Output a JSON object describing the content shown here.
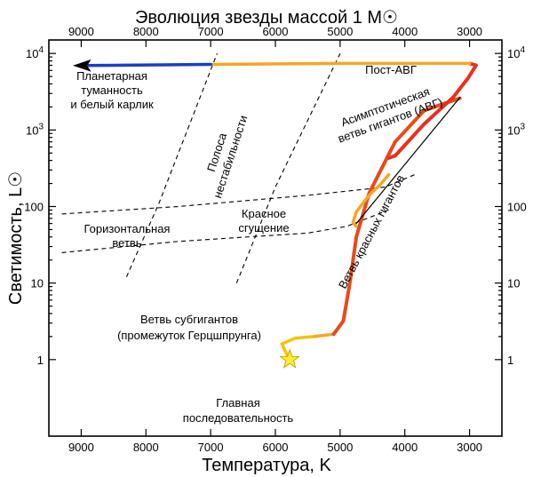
{
  "chart_data": {
    "type": "line",
    "title": "Эволюция звезды массой 1 M☉",
    "xlabel": "Температура, K",
    "ylabel": "Светимость, L☉",
    "x_axis": {
      "scale": "linear",
      "reversed": true,
      "range": [
        9500,
        2500
      ],
      "ticks": [
        9000,
        8000,
        7000,
        6000,
        5000,
        4000,
        3000
      ]
    },
    "y_axis": {
      "scale": "log",
      "range": [
        0.1,
        15000
      ],
      "ticks": [
        1,
        10,
        100,
        1000,
        10000
      ]
    },
    "series": [
      {
        "name": "Главная последовательность",
        "color": "#f4c20d",
        "points": [
          [
            5778,
            1.0
          ],
          [
            5850,
            1.3
          ],
          [
            5900,
            1.6
          ],
          [
            5700,
            1.9
          ],
          [
            5400,
            2.0
          ]
        ]
      },
      {
        "name": "Ветвь субгигантов (промежуток Герцшпрунга)",
        "color": "#f5a623",
        "points": [
          [
            5400,
            2.0
          ],
          [
            5100,
            2.15
          ]
        ]
      },
      {
        "name": "Ветвь красных гигантов",
        "color": "#e84a1a",
        "points": [
          [
            5100,
            2.15
          ],
          [
            4950,
            3.2
          ],
          [
            4850,
            10
          ],
          [
            4750,
            40
          ],
          [
            4550,
            150
          ],
          [
            4150,
            700
          ],
          [
            3700,
            1800
          ],
          [
            3150,
            2600
          ]
        ]
      },
      {
        "name": "Красное сгущение",
        "color": "#f5a623",
        "points": [
          [
            4750,
            55
          ],
          [
            4800,
            62
          ],
          [
            4750,
            85
          ],
          [
            4650,
            110
          ],
          [
            4520,
            150
          ],
          [
            4400,
            185
          ],
          [
            4250,
            260
          ]
        ]
      },
      {
        "name": "Асимптотическая ветвь гигантов (АВГ)",
        "color": "#e8311a",
        "points": [
          [
            4250,
            430
          ],
          [
            4150,
            460
          ],
          [
            3700,
            1200
          ],
          [
            3250,
            2700
          ],
          [
            3020,
            4800
          ],
          [
            2900,
            7000
          ],
          [
            3000,
            7400
          ]
        ]
      },
      {
        "name": "Пост-АВГ",
        "color": "#f5a623",
        "points": [
          [
            3000,
            7400
          ],
          [
            5000,
            7400
          ],
          [
            7000,
            7200
          ]
        ]
      },
      {
        "name": "Планетарная туманность и белый карлик",
        "color": "#1a3fc4",
        "points": [
          [
            7000,
            7200
          ],
          [
            8500,
            7000
          ],
          [
            9000,
            6950
          ]
        ]
      },
      {
        "name": "thin-line",
        "color": "#000000",
        "points": [
          [
            4750,
            60
          ],
          [
            3150,
            2650
          ]
        ]
      }
    ],
    "instability_strip": [
      {
        "points": [
          [
            8300,
            12
          ],
          [
            7800,
            110
          ],
          [
            6900,
            10000
          ]
        ]
      },
      {
        "points": [
          [
            6600,
            10
          ],
          [
            6000,
            180
          ],
          [
            5000,
            10000
          ]
        ]
      }
    ],
    "horizontal_branch": [
      {
        "points": [
          [
            9300,
            80
          ],
          [
            7500,
            100
          ],
          [
            5500,
            140
          ],
          [
            4300,
            180
          ],
          [
            3850,
            260
          ]
        ]
      },
      {
        "points": [
          [
            9300,
            25
          ],
          [
            7500,
            35
          ],
          [
            5500,
            45
          ],
          [
            4900,
            55
          ],
          [
            4250,
            90
          ]
        ]
      }
    ],
    "annotations": {
      "post_agb": "Пост-АВГ",
      "agb_1": "Асимптотическая",
      "agb_2": "ветвь гигантов (АВГ)",
      "pn_1": "Планетарная",
      "pn_2": "туманность",
      "pn_3": "и белый карлик",
      "strip_1": "Полоса",
      "strip_2": "нестабильности",
      "red_clump_1": "Красное",
      "red_clump_2": "сгущение",
      "hb_1": "Горизонтальная",
      "hb_2": "ветвь",
      "rgb": "Ветвь красных гигантов",
      "subgiant_1": "Ветвь субгигантов",
      "subgiant_2": "(промежуток Герцшпрунга)",
      "ms_1": "Главная",
      "ms_2": "последовательность"
    },
    "sun_marker": {
      "temperature": 5778,
      "luminosity": 1,
      "color": "#ffee33"
    }
  }
}
